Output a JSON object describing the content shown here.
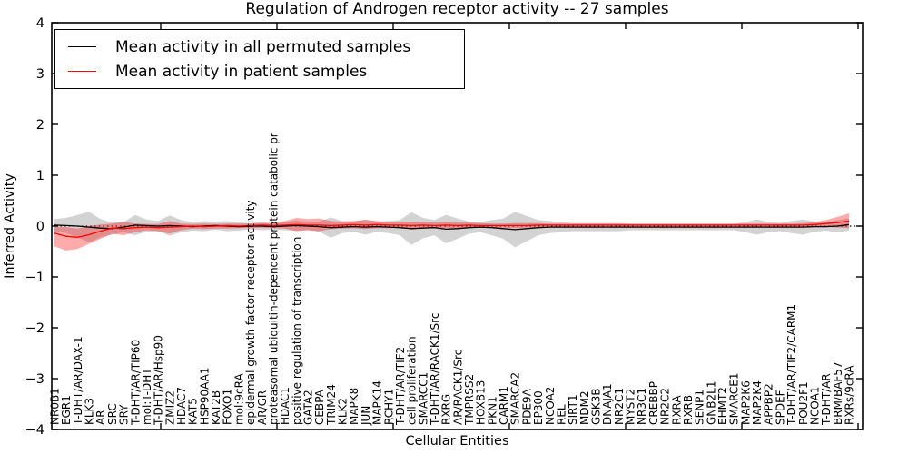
{
  "title": "Regulation of Androgen receptor activity -- 27 samples",
  "axes": {
    "xlabel": "Cellular Entities",
    "ylabel": "Inferred Activity",
    "ytick_labels": [
      "4",
      "3",
      "2",
      "1",
      "0",
      "−1",
      "−2",
      "−3",
      "−4"
    ]
  },
  "legend": {
    "items": [
      {
        "label": "Mean activity in all permuted samples",
        "color": "#000000"
      },
      {
        "label": "Mean activity in patient samples",
        "color": "#ff0000"
      }
    ]
  },
  "chart_data": {
    "type": "line",
    "title": "Regulation of Androgen receptor activity -- 27 samples",
    "xlabel": "Cellular Entities",
    "ylabel": "Inferred Activity",
    "ylim": [
      -4,
      4
    ],
    "yticks": [
      4,
      3,
      2,
      1,
      0,
      -1,
      -2,
      -3,
      -4
    ],
    "grid": false,
    "zero_line": true,
    "legend_position": "upper-left",
    "sample_count": 27,
    "categories": [
      "NR0B1",
      "EGR1",
      "T-DHT/AR/DAX-1",
      "KLK3",
      "AR",
      "SRC",
      "SRY",
      "T-DHT/AR/TIP60",
      "mol:T-DHT",
      "T-DHT/AR/Hsp90",
      "ZMIZ2",
      "HDAC7",
      "KAT5",
      "HSP90AA1",
      "KAT2B",
      "FOXO1",
      "mol:9cRA",
      "epidermal growth factor receptor activity",
      "AR/GR",
      "proteasomal ubiquitin-dependent protein catabolic pr",
      "HDAC1",
      "positive regulation of transcription",
      "GATA2",
      "CEBPA",
      "TRIM24",
      "KLK2",
      "MAPK8",
      "JUN",
      "MAPK14",
      "RCHY1",
      "T-DHT/AR/TIF2",
      "cell proliferation",
      "SMARCC1",
      "T-DHT/AR/RACK1/Src",
      "RXRG",
      "AR/RACK1/Src",
      "TMPRSS2",
      "HOXB13",
      "PKN1",
      "CARM1",
      "SMARCA2",
      "PDE9A",
      "EP300",
      "NCOA2",
      "REL",
      "SIRT1",
      "MDM2",
      "GSK3B",
      "DNAJA1",
      "NR2C1",
      "MYST2",
      "NR3C1",
      "CREBBP",
      "NR2C2",
      "RXRA",
      "RXRB",
      "SENP1",
      "GNB2L1",
      "EHMT2",
      "SMARCE1",
      "MAP2K6",
      "MAP2K4",
      "APPBP2",
      "SPDEF",
      "T-DHT/AR/TIF2/CARM1",
      "POU2F1",
      "NCOA1",
      "T-DHT/AR",
      "BRM/BAF57",
      "RXRs/9cRA"
    ],
    "series": [
      {
        "name": "Mean activity in all permuted samples",
        "color": "#000000",
        "band_color": "rgba(128,128,128,0.35)",
        "values": [
          0.02,
          0.01,
          0,
          -0.02,
          -0.04,
          -0.05,
          -0.02,
          0.02,
          0.01,
          0,
          0.01,
          0,
          -0.01,
          0,
          0.01,
          0,
          -0.01,
          0,
          0,
          -0.01,
          0,
          0.01,
          0,
          -0.01,
          -0.03,
          -0.02,
          -0.01,
          -0.02,
          -0.01,
          -0.02,
          -0.03,
          -0.05,
          -0.04,
          -0.03,
          -0.06,
          -0.05,
          -0.03,
          -0.02,
          -0.03,
          -0.05,
          -0.07,
          -0.05,
          -0.03,
          -0.02,
          -0.02,
          -0.02,
          -0.02,
          -0.02,
          -0.02,
          -0.02,
          -0.02,
          -0.02,
          -0.02,
          -0.02,
          -0.02,
          -0.02,
          -0.02,
          -0.02,
          -0.02,
          -0.02,
          -0.02,
          -0.02,
          -0.02,
          -0.02,
          -0.02,
          -0.02,
          -0.01,
          -0.01,
          0,
          0.03
        ],
        "band_lower": [
          -0.1,
          -0.14,
          -0.22,
          -0.32,
          -0.22,
          -0.17,
          -0.12,
          -0.18,
          -0.11,
          -0.1,
          -0.19,
          -0.12,
          -0.09,
          -0.1,
          -0.07,
          -0.1,
          -0.09,
          -0.06,
          -0.08,
          -0.07,
          -0.08,
          -0.09,
          -0.08,
          -0.11,
          -0.23,
          -0.14,
          -0.11,
          -0.17,
          -0.11,
          -0.14,
          -0.18,
          -0.37,
          -0.24,
          -0.18,
          -0.34,
          -0.25,
          -0.15,
          -0.12,
          -0.18,
          -0.25,
          -0.42,
          -0.3,
          -0.18,
          -0.14,
          -0.12,
          -0.1,
          -0.1,
          -0.1,
          -0.1,
          -0.1,
          -0.08,
          -0.08,
          -0.08,
          -0.08,
          -0.08,
          -0.08,
          -0.08,
          -0.08,
          -0.08,
          -0.08,
          -0.12,
          -0.17,
          -0.12,
          -0.1,
          -0.14,
          -0.17,
          -0.11,
          -0.09,
          -0.12,
          -0.09
        ],
        "band_upper": [
          0.14,
          0.16,
          0.22,
          0.28,
          0.14,
          0.07,
          0.08,
          0.22,
          0.13,
          0.1,
          0.21,
          0.12,
          0.07,
          0.1,
          0.09,
          0.1,
          0.07,
          0.06,
          0.08,
          0.05,
          0.08,
          0.11,
          0.08,
          0.09,
          0.17,
          0.1,
          0.09,
          0.13,
          0.09,
          0.1,
          0.12,
          0.27,
          0.16,
          0.12,
          0.22,
          0.15,
          0.09,
          0.08,
          0.12,
          0.15,
          0.28,
          0.2,
          0.12,
          0.1,
          0.08,
          0.06,
          0.06,
          0.06,
          0.06,
          0.06,
          0.04,
          0.04,
          0.04,
          0.04,
          0.04,
          0.04,
          0.04,
          0.04,
          0.04,
          0.04,
          0.08,
          0.13,
          0.08,
          0.06,
          0.1,
          0.13,
          0.09,
          0.07,
          0.12,
          0.15
        ]
      },
      {
        "name": "Mean activity in patient samples",
        "color": "#ff0000",
        "band_color": "rgba(255,0,0,0.33)",
        "values": [
          -0.14,
          -0.2,
          -0.22,
          -0.17,
          -0.1,
          -0.04,
          -0.05,
          -0.03,
          -0.02,
          -0.03,
          -0.02,
          -0.01,
          0,
          -0.01,
          0,
          0.01,
          0,
          0.01,
          0.02,
          0.01,
          0.02,
          0.03,
          0.02,
          0.02,
          0.01,
          0.02,
          0.03,
          0.02,
          0.03,
          0.02,
          0.02,
          0.01,
          0.02,
          0.01,
          0.02,
          0.01,
          0.02,
          0.01,
          0.01,
          0.01,
          0.01,
          0.01,
          0.02,
          0.02,
          0.02,
          0.02,
          0.02,
          0.02,
          0.02,
          0.02,
          0.02,
          0.02,
          0.02,
          0.02,
          0.02,
          0.02,
          0.02,
          0.02,
          0.02,
          0.02,
          0.02,
          0.02,
          0.02,
          0.02,
          0.02,
          0.02,
          0.03,
          0.05,
          0.07,
          0.1
        ],
        "band_lower": [
          -0.4,
          -0.48,
          -0.45,
          -0.35,
          -0.25,
          -0.15,
          -0.18,
          -0.12,
          -0.08,
          -0.1,
          -0.15,
          -0.08,
          -0.05,
          -0.06,
          -0.05,
          -0.05,
          -0.04,
          -0.04,
          -0.03,
          -0.04,
          -0.05,
          -0.1,
          -0.08,
          -0.1,
          -0.06,
          -0.05,
          -0.04,
          -0.06,
          -0.04,
          -0.04,
          -0.04,
          -0.06,
          -0.04,
          -0.04,
          -0.04,
          -0.05,
          -0.03,
          -0.03,
          -0.03,
          -0.03,
          -0.04,
          -0.03,
          -0.02,
          -0.02,
          -0.02,
          -0.02,
          -0.02,
          -0.02,
          -0.02,
          -0.02,
          -0.02,
          -0.02,
          -0.02,
          -0.02,
          -0.02,
          -0.02,
          -0.02,
          -0.02,
          -0.02,
          -0.02,
          -0.02,
          -0.02,
          -0.02,
          -0.02,
          -0.02,
          -0.02,
          -0.02,
          -0.01,
          -0.03,
          -0.04
        ],
        "band_upper": [
          -0.02,
          -0.02,
          -0.05,
          0,
          0.03,
          0.05,
          0.08,
          0.05,
          0.04,
          0.04,
          0.1,
          0.05,
          0.04,
          0.05,
          0.04,
          0.05,
          0.05,
          0.05,
          0.06,
          0.06,
          0.1,
          0.16,
          0.14,
          0.15,
          0.1,
          0.09,
          0.1,
          0.12,
          0.1,
          0.08,
          0.08,
          0.08,
          0.08,
          0.07,
          0.08,
          0.07,
          0.07,
          0.06,
          0.05,
          0.05,
          0.06,
          0.06,
          0.06,
          0.05,
          0.05,
          0.05,
          0.05,
          0.05,
          0.05,
          0.05,
          0.05,
          0.05,
          0.05,
          0.05,
          0.05,
          0.05,
          0.05,
          0.05,
          0.05,
          0.05,
          0.05,
          0.05,
          0.05,
          0.05,
          0.05,
          0.06,
          0.08,
          0.12,
          0.18,
          0.25
        ]
      }
    ]
  }
}
